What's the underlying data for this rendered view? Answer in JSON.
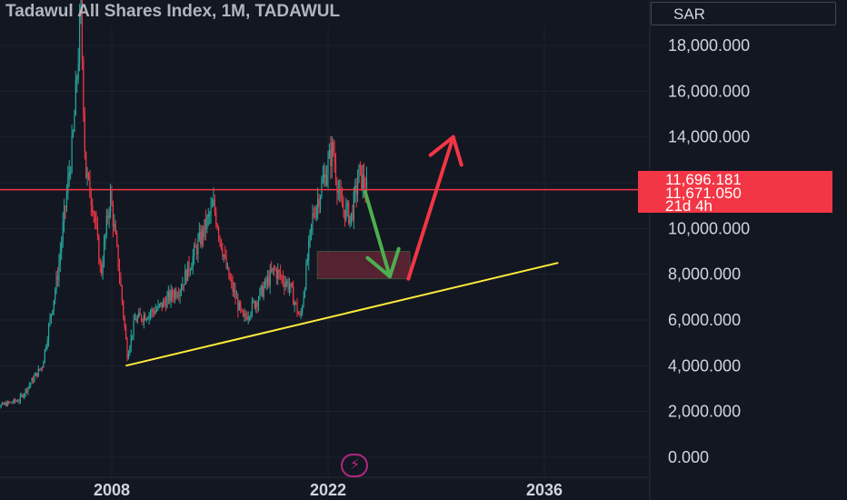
{
  "header": {
    "title": "Tadawul All Shares Index, 1M, TADAWUL",
    "currency": "SAR"
  },
  "price_labels": {
    "high_price": "11,696.181",
    "last_price": "11,671.050",
    "countdown": "21d 4h"
  },
  "icons": {
    "bolt": "lightning-bolt-icon"
  },
  "colors": {
    "background": "#131722",
    "up": "#26a69a",
    "down": "#f23645",
    "trendline": "#ffeb3b",
    "zone": "#8b2c3e",
    "projection_down": "#4caf50",
    "projection_up": "#f23645",
    "price_line": "#f23645"
  },
  "chart_data": {
    "type": "candlestick",
    "title": "Tadawul All Shares Index, 1M, TADAWUL",
    "y_tick_labels": [
      "0.000",
      "2,000.000",
      "4,000.000",
      "6,000.000",
      "8,000.000",
      "10,000.000",
      "12,000.000",
      "14,000.000",
      "16,000.000",
      "18,000.000"
    ],
    "x_tick_labels": [
      "2008",
      "2022",
      "2036"
    ],
    "ylim": [
      -500,
      20000
    ],
    "x_ticks": [
      2008,
      2022,
      2036
    ],
    "xlim": [
      1996,
      2041
    ],
    "grid": true,
    "key_points": [
      {
        "date": 2000.0,
        "close": 2100
      },
      {
        "date": 2002.0,
        "close": 2500
      },
      {
        "date": 2003.5,
        "close": 4000
      },
      {
        "date": 2004.5,
        "close": 8000
      },
      {
        "date": 2005.5,
        "close": 14000
      },
      {
        "date": 2006.0,
        "close": 19500
      },
      {
        "date": 2006.3,
        "close": 12500
      },
      {
        "date": 2006.8,
        "close": 11000
      },
      {
        "date": 2007.3,
        "close": 8000
      },
      {
        "date": 2007.9,
        "close": 11500
      },
      {
        "date": 2008.5,
        "close": 8000
      },
      {
        "date": 2009.0,
        "close": 4500
      },
      {
        "date": 2009.5,
        "close": 6000
      },
      {
        "date": 2011.0,
        "close": 6500
      },
      {
        "date": 2012.5,
        "close": 7500
      },
      {
        "date": 2014.6,
        "close": 11000
      },
      {
        "date": 2015.5,
        "close": 8000
      },
      {
        "date": 2016.5,
        "close": 6000
      },
      {
        "date": 2017.5,
        "close": 7000
      },
      {
        "date": 2018.5,
        "close": 8200
      },
      {
        "date": 2019.5,
        "close": 7500
      },
      {
        "date": 2020.2,
        "close": 6000
      },
      {
        "date": 2021.0,
        "close": 10500
      },
      {
        "date": 2022.3,
        "close": 13500
      },
      {
        "date": 2022.8,
        "close": 11000
      },
      {
        "date": 2023.5,
        "close": 10500
      },
      {
        "date": 2024.0,
        "close": 12400
      },
      {
        "date": 2024.5,
        "close": 11700
      }
    ],
    "price_line": 11696.181,
    "last_price": 11671.05,
    "annotations": {
      "trendline": {
        "from": {
          "date": 2008.9,
          "value": 4000
        },
        "to": {
          "date": 2036.9,
          "value": 8500
        }
      },
      "zone": {
        "date_start": 2021.3,
        "date_end": 2027.3,
        "value_low": 7800,
        "value_high": 9000
      },
      "projection_down": {
        "from": {
          "date": 2024.4,
          "value": 11600
        },
        "to": {
          "date": 2026.0,
          "value": 7900
        }
      },
      "projection_up": {
        "from": {
          "date": 2027.2,
          "value": 7800
        },
        "to": {
          "date": 2030.1,
          "value": 14000
        }
      }
    }
  }
}
